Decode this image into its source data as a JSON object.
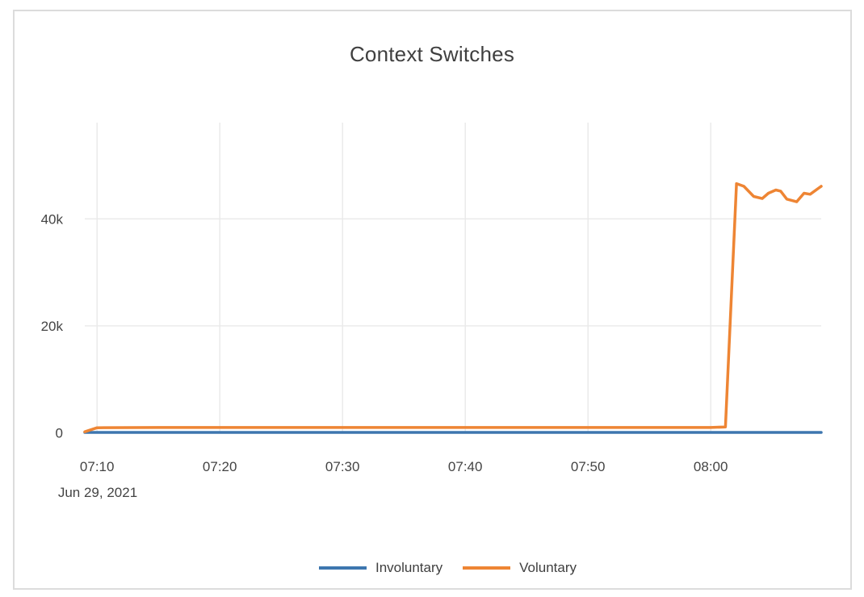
{
  "chart_data": {
    "type": "line",
    "title": "Context Switches",
    "x_axis": {
      "date_label": "Jun 29, 2021",
      "range_minutes": [
        429,
        489
      ],
      "ticks": [
        {
          "t": 430,
          "label": "07:10"
        },
        {
          "t": 440,
          "label": "07:20"
        },
        {
          "t": 450,
          "label": "07:30"
        },
        {
          "t": 460,
          "label": "07:40"
        },
        {
          "t": 470,
          "label": "07:50"
        },
        {
          "t": 480,
          "label": "08:00"
        }
      ]
    },
    "y_axis": {
      "range": [
        0,
        58000
      ],
      "ticks": [
        {
          "v": 0,
          "label": "0"
        },
        {
          "v": 20000,
          "label": "20k"
        },
        {
          "v": 40000,
          "label": "40k"
        }
      ]
    },
    "legend": {
      "position": "bottom"
    },
    "grid_color": "#e9e9e9",
    "series": [
      {
        "name": "Involuntary",
        "color": "#3D76AF",
        "points": [
          [
            429,
            80
          ],
          [
            440,
            80
          ],
          [
            450,
            80
          ],
          [
            460,
            80
          ],
          [
            470,
            80
          ],
          [
            480,
            80
          ],
          [
            485,
            80
          ],
          [
            489,
            80
          ]
        ]
      },
      {
        "name": "Voluntary",
        "color": "#EE8534",
        "points": [
          [
            429,
            200
          ],
          [
            430,
            950
          ],
          [
            435,
            1000
          ],
          [
            440,
            1000
          ],
          [
            445,
            1000
          ],
          [
            450,
            1000
          ],
          [
            455,
            1000
          ],
          [
            460,
            1000
          ],
          [
            465,
            1000
          ],
          [
            470,
            1000
          ],
          [
            475,
            1000
          ],
          [
            480,
            1000
          ],
          [
            481.2,
            1100
          ],
          [
            482.1,
            46600
          ],
          [
            482.7,
            46100
          ],
          [
            483.5,
            44200
          ],
          [
            484.2,
            43800
          ],
          [
            484.7,
            44800
          ],
          [
            485.3,
            45400
          ],
          [
            485.7,
            45200
          ],
          [
            486.2,
            43700
          ],
          [
            487,
            43200
          ],
          [
            487.6,
            44800
          ],
          [
            488.1,
            44600
          ],
          [
            489,
            46100
          ]
        ]
      }
    ]
  }
}
